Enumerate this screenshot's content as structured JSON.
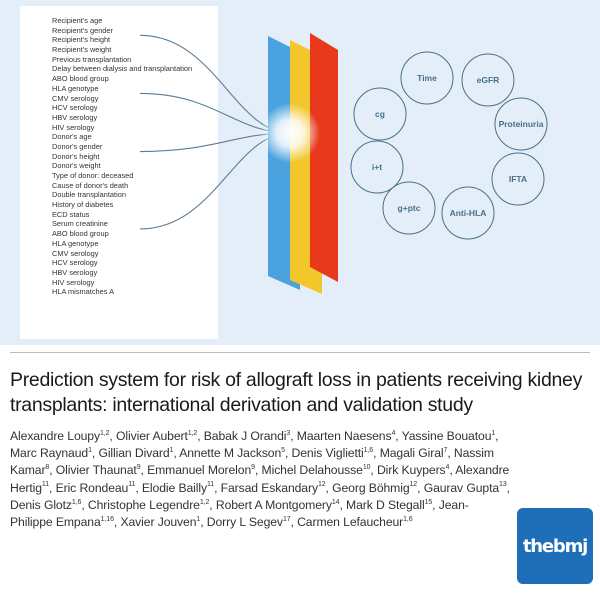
{
  "figure": {
    "variables": [
      "Recipient's age",
      "Recipient's gender",
      "Recipient's height",
      "Recipient's weight",
      "Previous transplantation",
      "Delay between dialysis and transplantation",
      "ABO blood group",
      "HLA genotype",
      "CMV serology",
      "HCV serology",
      "HBV serology",
      "HIV serology",
      "Donor's age",
      "Donor's gender",
      "Donor's height",
      "Donor's weight",
      "Type of donor: deceased",
      "Cause of donor's death",
      "Double transplantation",
      "History of diabetes",
      "ECD status",
      "Serum creatinine",
      "ABO blood group",
      "HLA genotype",
      "CMV serology",
      "HCV serology",
      "HBV serology",
      "HIV serology",
      "HLA mismatches A"
    ],
    "nodes": [
      "Time",
      "eGFR",
      "cg",
      "Proteinuria",
      "i+t",
      "IFTA",
      "g+ptc",
      "Anti-HLA"
    ],
    "layer_colors": [
      "#4aa3df",
      "#f2c72b",
      "#e8391d"
    ],
    "node_color": "#4a6f8a"
  },
  "article": {
    "title": "Prediction system for risk of allograft loss in patients receiving kidney transplants: international derivation and validation study",
    "authors": [
      {
        "name": "Alexandre Loupy",
        "aff": "1,2"
      },
      {
        "name": "Olivier Aubert",
        "aff": "1,2"
      },
      {
        "name": "Babak J Orandi",
        "aff": "3"
      },
      {
        "name": "Maarten Naesens",
        "aff": "4"
      },
      {
        "name": "Yassine Bouatou",
        "aff": "1"
      },
      {
        "name": "Marc Raynaud",
        "aff": "1"
      },
      {
        "name": "Gillian Divard",
        "aff": "1"
      },
      {
        "name": "Annette M Jackson",
        "aff": "5"
      },
      {
        "name": "Denis Viglietti",
        "aff": "1,6"
      },
      {
        "name": "Magali Giral",
        "aff": "7"
      },
      {
        "name": "Nassim Kamar",
        "aff": "8"
      },
      {
        "name": "Olivier Thaunat",
        "aff": "9"
      },
      {
        "name": "Emmanuel Morelon",
        "aff": "9"
      },
      {
        "name": "Michel Delahousse",
        "aff": "10"
      },
      {
        "name": "Dirk Kuypers",
        "aff": "4"
      },
      {
        "name": "Alexandre Hertig",
        "aff": "11"
      },
      {
        "name": "Eric Rondeau",
        "aff": "11"
      },
      {
        "name": "Elodie Bailly",
        "aff": "11"
      },
      {
        "name": "Farsad Eskandary",
        "aff": "12"
      },
      {
        "name": "Georg Böhmig",
        "aff": "12"
      },
      {
        "name": "Gaurav Gupta",
        "aff": "13"
      },
      {
        "name": "Denis Glotz",
        "aff": "1,6"
      },
      {
        "name": "Christophe Legendre",
        "aff": "1,2"
      },
      {
        "name": "Robert A Montgomery",
        "aff": "14"
      },
      {
        "name": "Mark D Stegall",
        "aff": "15"
      },
      {
        "name": "Jean-Philippe Empana",
        "aff": "1,16"
      },
      {
        "name": "Xavier Jouven",
        "aff": "1"
      },
      {
        "name": "Dorry L Segev",
        "aff": "17"
      },
      {
        "name": "Carmen Lefaucheur",
        "aff": "1,6"
      }
    ],
    "logo_text": "thebmj",
    "logo_color": "#1e6fb7"
  }
}
